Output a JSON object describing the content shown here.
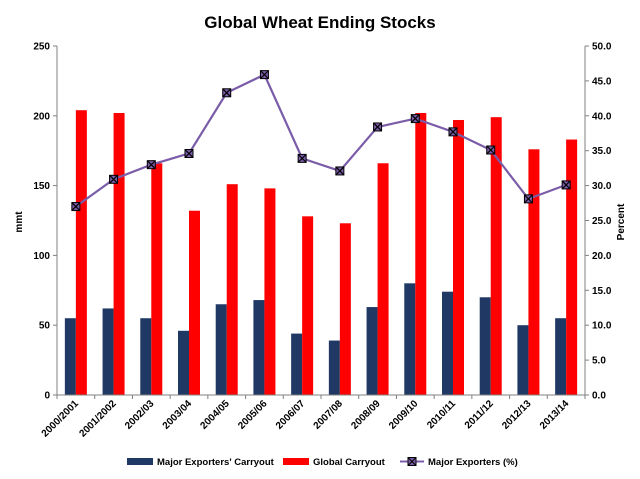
{
  "chart_data": {
    "type": "bar",
    "title": "Global Wheat Ending Stocks",
    "xlabel": "",
    "ylabel": "mmt",
    "y2label": "Percent",
    "ylim": [
      0,
      250
    ],
    "y2lim": [
      0,
      50
    ],
    "yticks": [
      "0",
      "50",
      "100",
      "150",
      "200",
      "250"
    ],
    "y2ticks": [
      "0.0",
      "5.0",
      "10.0",
      "15.0",
      "20.0",
      "25.0",
      "30.0",
      "35.0",
      "40.0",
      "45.0",
      "50.0"
    ],
    "grid": false,
    "legend": "bottom",
    "categories": [
      "2000/2001",
      "2001/2002",
      "2002/03",
      "2003/04",
      "2004/05",
      "2005/06",
      "2006/07",
      "2007/08",
      "2008/09",
      "2009/10",
      "2010/11",
      "2011/12",
      "2012/13",
      "2013/14"
    ],
    "series": [
      {
        "name": "Major Exporters' Carryout",
        "type": "bar",
        "axis": "left",
        "color": "#1f3864",
        "values": [
          55,
          62,
          55,
          46,
          65,
          68,
          44,
          39,
          63,
          80,
          74,
          70,
          50,
          55
        ]
      },
      {
        "name": "Global Carryout",
        "type": "bar",
        "axis": "left",
        "color": "#ff0000",
        "values": [
          204,
          202,
          166,
          132,
          151,
          148,
          128,
          123,
          166,
          202,
          197,
          199,
          176,
          183
        ]
      },
      {
        "name": "Major Exporters (%)",
        "type": "line",
        "axis": "right",
        "color": "#7a5ca8",
        "marker": "x-square",
        "values": [
          27.0,
          30.9,
          33.0,
          34.6,
          43.3,
          45.9,
          33.9,
          32.1,
          38.4,
          39.6,
          37.7,
          35.1,
          28.1,
          30.1
        ]
      }
    ]
  }
}
